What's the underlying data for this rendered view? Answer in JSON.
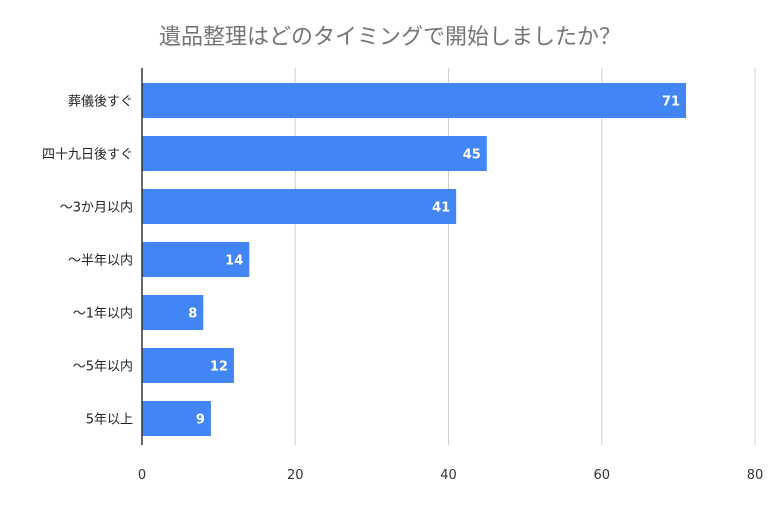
{
  "chart_data": {
    "type": "bar",
    "orientation": "horizontal",
    "title": "遺品整理はどのタイミングで開始しましたか？",
    "categories": [
      "葬儀後すぐ",
      "四十九日後すぐ",
      "〜3か月以内",
      "〜半年以内",
      "〜1年以内",
      "〜5年以内",
      "5年以上"
    ],
    "values": [
      71,
      45,
      41,
      14,
      8,
      12,
      9
    ],
    "xlim": [
      0,
      80
    ],
    "xticks": [
      "0",
      "20",
      "40",
      "60",
      "80"
    ],
    "xlabel": "",
    "ylabel": "",
    "grid": true,
    "legend": "none",
    "bar_color": "#4285f4",
    "data_labels": true
  }
}
